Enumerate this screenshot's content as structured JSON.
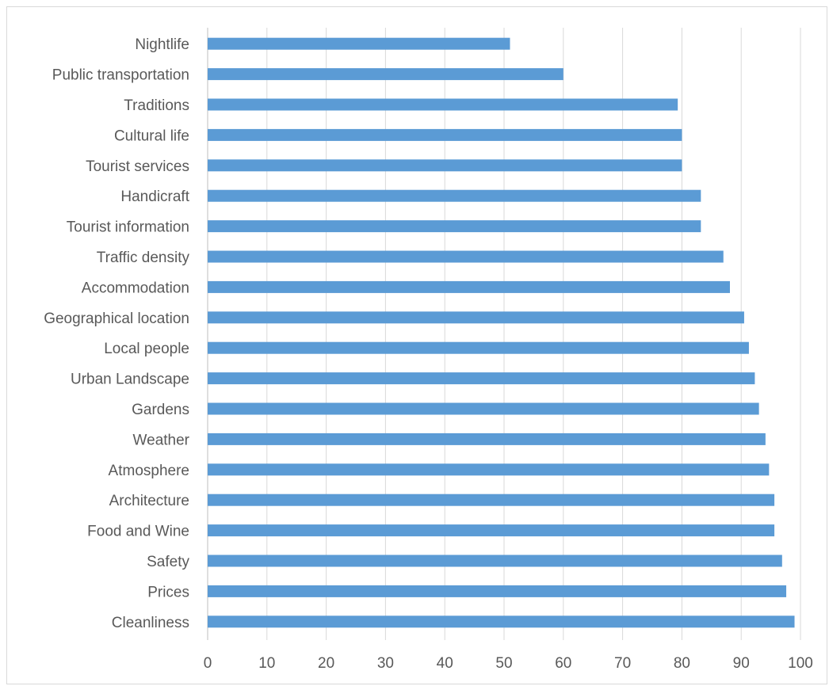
{
  "chart_data": {
    "type": "bar",
    "orientation": "horizontal",
    "title": "",
    "xlabel": "",
    "ylabel": "",
    "categories": [
      "Nightlife",
      "Public transportation",
      "Traditions",
      "Cultural life",
      "Tourist  services",
      "Handicraft",
      "Tourist information",
      "Traffic density",
      "Accommodation",
      "Geographical location",
      "Local people",
      "Urban Landscape",
      "Gardens",
      "Weather",
      "Atmosphere",
      "Architecture",
      "Food and Wine",
      "Safety",
      "Prices",
      "Cleanliness"
    ],
    "values": [
      51,
      60,
      79.3,
      80,
      80,
      83.2,
      83.2,
      87,
      88.1,
      90.5,
      91.3,
      92.3,
      93,
      94.1,
      94.7,
      95.6,
      95.6,
      96.9,
      97.6,
      99
    ],
    "xlim": [
      0,
      100
    ],
    "xticks": [
      "0",
      "10",
      "20",
      "30",
      "40",
      "50",
      "60",
      "70",
      "80",
      "90",
      "100"
    ],
    "bar_color": "#5b9bd5",
    "grid": "vertical",
    "legend": "none"
  }
}
